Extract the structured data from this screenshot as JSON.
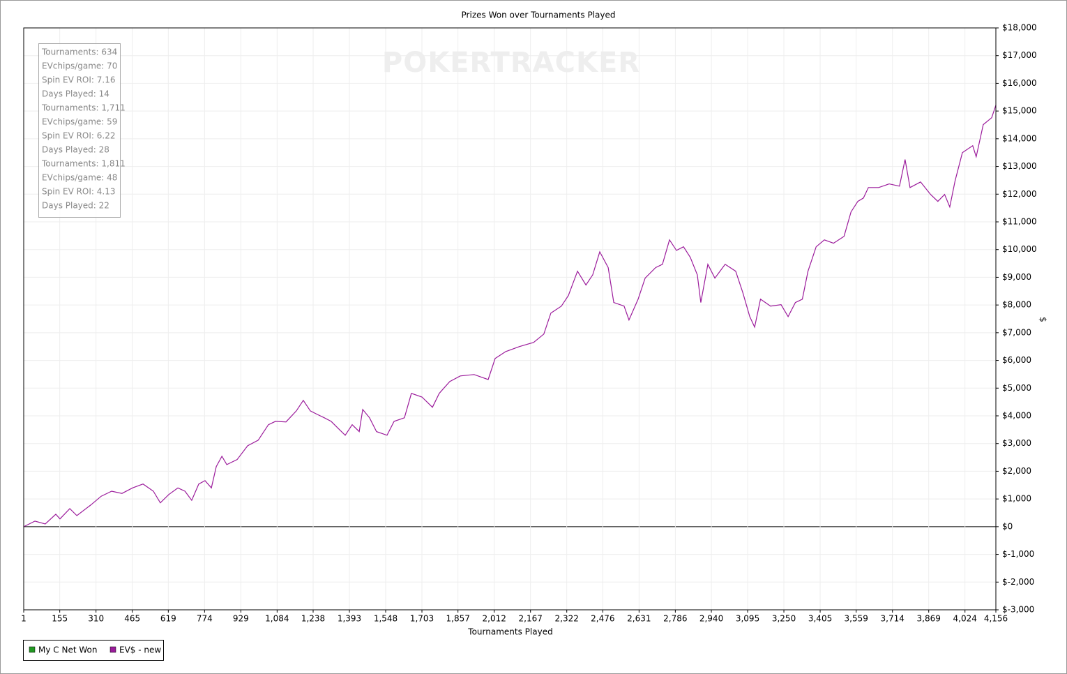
{
  "chart_data": {
    "type": "line",
    "title": "Prizes Won over Tournaments Played",
    "x_label": "Tournaments Played",
    "y_label": "$",
    "watermark": "POKERTRACKER",
    "stats": [
      "Tournaments: 634",
      "EVchips/game: 70",
      "Spin EV ROI: 7.16",
      "Days Played: 14",
      "Tournaments: 1,711",
      "EVchips/game: 59",
      "Spin EV ROI: 6.22",
      "Days Played: 28",
      "Tournaments: 1,811",
      "EVchips/game: 48",
      "Spin EV ROI: 4.13",
      "Days Played: 22"
    ],
    "xlim": [
      1,
      4156
    ],
    "ylim": [
      -3000,
      18000
    ],
    "grid": true,
    "legend": "bottom-left",
    "xticks": [
      1,
      155,
      310,
      465,
      619,
      774,
      929,
      {
        "value": 1084,
        "label": "1,084"
      },
      {
        "value": 1238,
        "label": "1,238"
      },
      {
        "value": 1393,
        "label": "1,393"
      },
      {
        "value": 1548,
        "label": "1,548"
      },
      {
        "value": 1703,
        "label": "1,703"
      },
      {
        "value": 1857,
        "label": "1,857"
      },
      {
        "value": 2012,
        "label": "2,012"
      },
      {
        "value": 2167,
        "label": "2,167"
      },
      {
        "value": 2322,
        "label": "2,322"
      },
      {
        "value": 2476,
        "label": "2,476"
      },
      {
        "value": 2631,
        "label": "2,631"
      },
      {
        "value": 2786,
        "label": "2,786"
      },
      {
        "value": 2940,
        "label": "2,940"
      },
      {
        "value": 3095,
        "label": "3,095"
      },
      {
        "value": 3250,
        "label": "3,250"
      },
      {
        "value": 3405,
        "label": "3,405"
      },
      {
        "value": 3559,
        "label": "3,559"
      },
      {
        "value": 3714,
        "label": "3,714"
      },
      {
        "value": 3869,
        "label": "3,869"
      },
      {
        "value": 4024,
        "label": "4,024"
      },
      {
        "value": 4156,
        "label": "4,156"
      }
    ],
    "yticks": [
      {
        "value": -3000,
        "label": "$-3,000"
      },
      {
        "value": -2000,
        "label": "$-2,000"
      },
      {
        "value": -1000,
        "label": "$-1,000"
      },
      {
        "value": 0,
        "label": "$0"
      },
      {
        "value": 1000,
        "label": "$1,000"
      },
      {
        "value": 2000,
        "label": "$2,000"
      },
      {
        "value": 3000,
        "label": "$3,000"
      },
      {
        "value": 4000,
        "label": "$4,000"
      },
      {
        "value": 5000,
        "label": "$5,000"
      },
      {
        "value": 6000,
        "label": "$6,000"
      },
      {
        "value": 7000,
        "label": "$7,000"
      },
      {
        "value": 8000,
        "label": "$8,000"
      },
      {
        "value": 9000,
        "label": "$9,000"
      },
      {
        "value": 10000,
        "label": "$10,000"
      },
      {
        "value": 11000,
        "label": "$11,000"
      },
      {
        "value": 12000,
        "label": "$12,000"
      },
      {
        "value": 13000,
        "label": "$13,000"
      },
      {
        "value": 14000,
        "label": "$14,000"
      },
      {
        "value": 15000,
        "label": "$15,000"
      },
      {
        "value": 16000,
        "label": "$16,000"
      },
      {
        "value": 17000,
        "label": "$17,000"
      },
      {
        "value": 18000,
        "label": "$18,000"
      }
    ],
    "x": [
      1,
      49,
      93,
      138,
      156,
      198,
      228,
      287,
      332,
      377,
      421,
      466,
      511,
      555,
      585,
      621,
      660,
      690,
      719,
      749,
      776,
      803,
      824,
      848,
      869,
      913,
      958,
      1003,
      1047,
      1077,
      1122,
      1166,
      1196,
      1226,
      1256,
      1286,
      1315,
      1345,
      1375,
      1405,
      1435,
      1450,
      1479,
      1509,
      1554,
      1584,
      1628,
      1658,
      1703,
      1748,
      1777,
      1822,
      1867,
      1926,
      1986,
      2016,
      2061,
      2120,
      2180,
      2224,
      2254,
      2299,
      2329,
      2368,
      2404,
      2433,
      2463,
      2499,
      2523,
      2567,
      2588,
      2627,
      2657,
      2702,
      2731,
      2761,
      2791,
      2821,
      2850,
      2880,
      2895,
      2925,
      2955,
      2999,
      3044,
      3074,
      3104,
      3125,
      3150,
      3193,
      3238,
      3268,
      3299,
      3329,
      3353,
      3388,
      3423,
      3462,
      3507,
      3537,
      3566,
      3590,
      3611,
      3655,
      3700,
      3744,
      3768,
      3789,
      3834,
      3877,
      3908,
      3937,
      3959,
      3982,
      4013,
      4057,
      4072,
      4102,
      4138,
      4156
    ],
    "series": [
      {
        "name": "My C Net Won",
        "color": "#229922",
        "values": [
          null,
          null,
          null,
          null,
          null,
          null,
          null,
          null,
          null,
          null,
          null,
          null,
          null,
          null,
          null,
          null,
          null,
          null,
          null,
          null,
          null,
          null,
          null,
          null,
          null,
          null,
          null,
          null,
          null,
          null,
          null,
          null,
          null,
          null,
          null,
          null,
          null,
          null,
          null,
          null,
          null,
          null,
          null,
          null,
          null,
          null,
          null,
          null,
          null,
          null,
          null,
          null,
          null,
          null,
          null,
          null,
          null,
          null,
          null,
          null,
          null,
          null,
          null,
          null,
          null,
          null,
          null,
          null,
          null,
          null,
          null,
          null,
          null,
          null,
          null,
          null,
          null,
          null,
          null,
          null,
          null,
          null,
          null,
          null,
          null,
          null,
          null,
          null,
          null,
          null,
          null,
          null,
          null,
          null,
          null,
          null,
          null,
          null,
          null,
          null,
          null,
          null,
          null,
          null,
          null,
          null,
          null,
          null,
          null,
          null,
          null,
          null,
          null,
          null,
          null,
          null,
          null,
          null,
          null,
          null
        ]
      },
      {
        "name": "EV$ - new",
        "color": "#9b1b9b",
        "values": [
          0,
          200,
          100,
          450,
          280,
          650,
          400,
          780,
          1100,
          1280,
          1200,
          1400,
          1540,
          1280,
          860,
          1160,
          1400,
          1280,
          950,
          1540,
          1660,
          1400,
          2170,
          2540,
          2240,
          2420,
          2920,
          3120,
          3680,
          3800,
          3780,
          4180,
          4560,
          4180,
          4050,
          3930,
          3800,
          3550,
          3300,
          3680,
          3430,
          4230,
          3930,
          3430,
          3300,
          3800,
          3930,
          4810,
          4680,
          4310,
          4810,
          5240,
          5440,
          5490,
          5310,
          6070,
          6320,
          6500,
          6650,
          6950,
          7710,
          7960,
          8340,
          9220,
          8720,
          9090,
          9920,
          9350,
          8090,
          7960,
          7460,
          8210,
          8970,
          9350,
          9470,
          10350,
          9970,
          10100,
          9720,
          9090,
          8090,
          9470,
          8970,
          9470,
          9220,
          8460,
          7580,
          7200,
          8210,
          7960,
          8010,
          7580,
          8090,
          8210,
          9220,
          10100,
          10350,
          10230,
          10480,
          11360,
          11740,
          11860,
          12240,
          12240,
          12370,
          12290,
          13250,
          12240,
          12440,
          11990,
          11740,
          11990,
          11540,
          12490,
          13500,
          13750,
          13350,
          14510,
          14760,
          15210
        ]
      }
    ]
  }
}
